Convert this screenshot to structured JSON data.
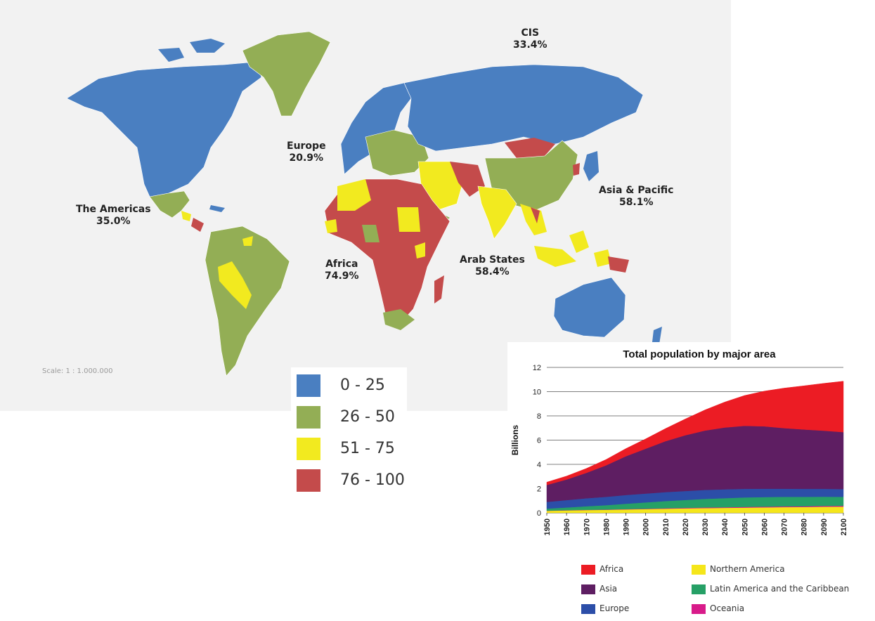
{
  "map": {
    "scale_text": "Scale: 1 : 1.000.000",
    "regions": [
      {
        "name": "CIS",
        "value": "33.4%"
      },
      {
        "name": "Europe",
        "value": "20.9%"
      },
      {
        "name": "The Americas",
        "value": "35.0%"
      },
      {
        "name": "Asia & Pacific",
        "value": "58.1%"
      },
      {
        "name": "Africa",
        "value": "74.9%"
      },
      {
        "name": "Arab States",
        "value": "58.4%"
      }
    ],
    "legend": [
      {
        "label": "0 - 25",
        "color": "#4a7fc1"
      },
      {
        "label": "26 - 50",
        "color": "#93ae55"
      },
      {
        "label": "51 - 75",
        "color": "#f2ea1f"
      },
      {
        "label": "76 - 100",
        "color": "#c44b4b"
      }
    ]
  },
  "chart_data": {
    "type": "area",
    "stacked": true,
    "title": "Total population by major area",
    "ylabel": "Billions",
    "xlabel": "",
    "ylim": [
      0,
      12
    ],
    "yticks": [
      0,
      2,
      4,
      6,
      8,
      10,
      12
    ],
    "grid": "horizontal",
    "x": [
      1950,
      1960,
      1970,
      1980,
      1990,
      2000,
      2010,
      2020,
      2030,
      2040,
      2050,
      2060,
      2070,
      2080,
      2090,
      2100
    ],
    "series": [
      {
        "name": "Northern America",
        "color": "#f5e61a",
        "values": [
          0.17,
          0.2,
          0.23,
          0.25,
          0.28,
          0.31,
          0.34,
          0.37,
          0.39,
          0.41,
          0.43,
          0.45,
          0.47,
          0.48,
          0.5,
          0.51
        ]
      },
      {
        "name": "Oceania",
        "color": "#d81b8a",
        "values": [
          0.01,
          0.02,
          0.02,
          0.02,
          0.03,
          0.03,
          0.04,
          0.04,
          0.05,
          0.05,
          0.06,
          0.06,
          0.06,
          0.06,
          0.07,
          0.07
        ]
      },
      {
        "name": "Latin America and the Caribbean",
        "color": "#26a066",
        "values": [
          0.17,
          0.22,
          0.29,
          0.36,
          0.44,
          0.52,
          0.59,
          0.65,
          0.71,
          0.75,
          0.78,
          0.79,
          0.79,
          0.78,
          0.76,
          0.74
        ]
      },
      {
        "name": "Europe",
        "color": "#2c4ea8",
        "values": [
          0.55,
          0.61,
          0.66,
          0.69,
          0.72,
          0.73,
          0.74,
          0.74,
          0.74,
          0.73,
          0.71,
          0.69,
          0.67,
          0.66,
          0.65,
          0.64
        ]
      },
      {
        "name": "Asia",
        "color": "#5e1e62",
        "values": [
          1.4,
          1.7,
          2.1,
          2.6,
          3.2,
          3.7,
          4.2,
          4.6,
          4.9,
          5.1,
          5.2,
          5.15,
          5.0,
          4.9,
          4.8,
          4.7
        ]
      },
      {
        "name": "Africa",
        "color": "#ec1c24",
        "values": [
          0.23,
          0.28,
          0.36,
          0.48,
          0.63,
          0.81,
          1.04,
          1.34,
          1.7,
          2.1,
          2.5,
          2.9,
          3.3,
          3.6,
          3.9,
          4.2
        ]
      }
    ],
    "legend_order": [
      "Africa",
      "Asia",
      "Europe",
      "Northern America",
      "Latin America and the Caribbean",
      "Oceania"
    ]
  }
}
